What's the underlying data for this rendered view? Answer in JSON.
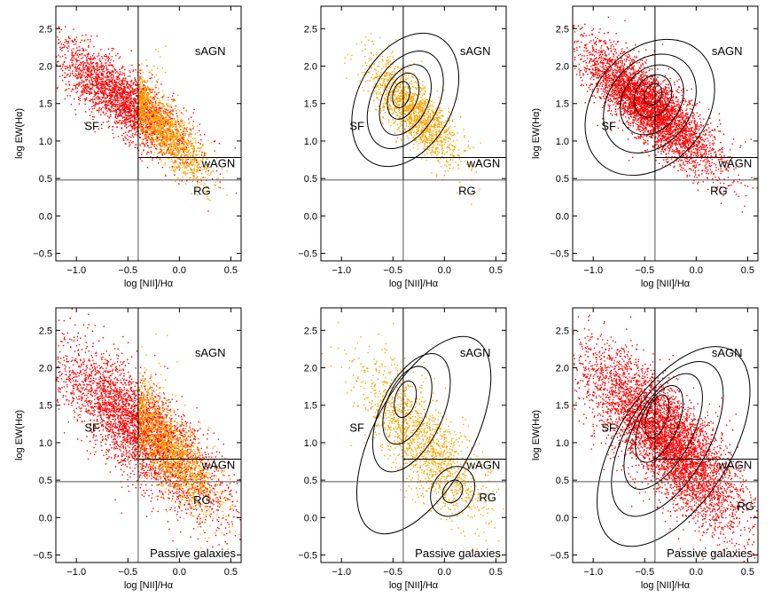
{
  "figure": {
    "description_free": true,
    "colors": {
      "star_forming": "#ff0000",
      "agn": "#ffa500",
      "axes": "#000000",
      "contour": "#000000",
      "ref_lines": "#555555"
    }
  },
  "chart_data": [
    {
      "type": "scatter",
      "panel": "top-left",
      "xlabel": "log [NII]/Hα",
      "ylabel": "log EW(Hα)",
      "xlim": [
        -1.2,
        0.6
      ],
      "ylim": [
        -0.6,
        2.8
      ],
      "xticks": [
        "−1.0",
        "−0.5",
        "0.0",
        "0.5"
      ],
      "xtick_values": [
        -1.0,
        -0.5,
        0.0,
        0.5
      ],
      "yticks": [
        "−0.5",
        "0.0",
        "0.5",
        "1.0",
        "1.5",
        "2.0",
        "2.5"
      ],
      "ytick_values": [
        -0.5,
        0.0,
        0.5,
        1.0,
        1.5,
        2.0,
        2.5
      ],
      "region_labels": [
        {
          "text": "sAGN",
          "x": 0.3,
          "y": 2.15
        },
        {
          "text": "SF",
          "x": -0.85,
          "y": 1.15
        },
        {
          "text": "wAGN",
          "x": 0.38,
          "y": 0.65
        },
        {
          "text": "RG",
          "x": 0.22,
          "y": 0.28
        }
      ],
      "ref_lines": {
        "vertical_x": -0.4,
        "h_ew": 0.78,
        "h_ew_xrange": [
          -0.4,
          0.6
        ],
        "h_low": 0.48,
        "h_low_xrange": [
          -1.2,
          0.6
        ]
      },
      "series": [
        {
          "name": "red",
          "color": "#ff0000",
          "center": [
            -0.55,
            1.55
          ],
          "spread": [
            0.33,
            0.4
          ],
          "slope": -0.95,
          "n": 2600
        },
        {
          "name": "orange",
          "color": "#ffa500",
          "center": [
            -0.15,
            1.15
          ],
          "spread": [
            0.22,
            0.35
          ],
          "slope": -1.3,
          "n": 1400,
          "xmin": -0.4
        }
      ],
      "contours": [],
      "annotation": ""
    },
    {
      "type": "scatter",
      "panel": "top-middle",
      "xlabel": "log [NII]/Hα",
      "ylabel": "",
      "xlim": [
        -1.2,
        0.6
      ],
      "ylim": [
        -0.6,
        2.8
      ],
      "xticks": [
        "−1.0",
        "−0.5",
        "0.0",
        "0.5"
      ],
      "xtick_values": [
        -1.0,
        -0.5,
        0.0,
        0.5
      ],
      "yticks": [
        "−0.5",
        "0.0",
        "0.5",
        "1.0",
        "1.5",
        "2.0",
        "2.5"
      ],
      "ytick_values": [
        -0.5,
        0.0,
        0.5,
        1.0,
        1.5,
        2.0,
        2.5
      ],
      "region_labels": [
        {
          "text": "sAGN",
          "x": 0.3,
          "y": 2.15
        },
        {
          "text": "SF",
          "x": -0.85,
          "y": 1.15
        },
        {
          "text": "wAGN",
          "x": 0.38,
          "y": 0.65
        },
        {
          "text": "RG",
          "x": 0.22,
          "y": 0.28
        }
      ],
      "ref_lines": {
        "vertical_x": -0.4,
        "h_ew": 0.78,
        "h_ew_xrange": [
          -0.4,
          0.6
        ],
        "h_low": 0.48,
        "h_low_xrange": [
          -1.2,
          0.6
        ]
      },
      "series": [
        {
          "name": "orange",
          "color": "#ffa500",
          "center": [
            -0.3,
            1.4
          ],
          "spread": [
            0.22,
            0.4
          ],
          "slope": -1.2,
          "n": 1500
        }
      ],
      "contours": [
        {
          "cx": -0.38,
          "cy": 1.55,
          "rx": 0.46,
          "ry": 0.95,
          "rot": 28
        },
        {
          "cx": -0.38,
          "cy": 1.55,
          "rx": 0.32,
          "ry": 0.7,
          "rot": 28
        },
        {
          "cx": -0.38,
          "cy": 1.55,
          "rx": 0.22,
          "ry": 0.5,
          "rot": 25
        },
        {
          "cx": -0.4,
          "cy": 1.6,
          "rx": 0.14,
          "ry": 0.32,
          "rot": 20
        },
        {
          "cx": -0.42,
          "cy": 1.62,
          "rx": 0.08,
          "ry": 0.18,
          "rot": 15
        }
      ],
      "annotation": ""
    },
    {
      "type": "scatter",
      "panel": "top-right",
      "xlabel": "log [NII]/Hα",
      "ylabel": "log EW(Hα)",
      "xlim": [
        -1.2,
        0.6
      ],
      "ylim": [
        -0.6,
        2.8
      ],
      "xticks": [
        "−1.0",
        "−0.5",
        "0.0",
        "0.5"
      ],
      "xtick_values": [
        -1.0,
        -0.5,
        0.0,
        0.5
      ],
      "yticks": [
        "−0.5",
        "0.0",
        "0.5",
        "1.0",
        "1.5",
        "2.0",
        "2.5"
      ],
      "ytick_values": [
        -0.5,
        0.0,
        0.5,
        1.0,
        1.5,
        2.0,
        2.5
      ],
      "region_labels": [
        {
          "text": "sAGN",
          "x": 0.3,
          "y": 2.15
        },
        {
          "text": "SF",
          "x": -0.85,
          "y": 1.15
        },
        {
          "text": "wAGN",
          "x": 0.38,
          "y": 0.65
        },
        {
          "text": "RG",
          "x": 0.22,
          "y": 0.28
        }
      ],
      "ref_lines": {
        "vertical_x": -0.4,
        "h_ew": 0.78,
        "h_ew_xrange": [
          -0.4,
          0.6
        ],
        "h_low": 0.48,
        "h_low_xrange": [
          -1.2,
          0.6
        ]
      },
      "series": [
        {
          "name": "red",
          "color": "#ff0000",
          "center": [
            -0.45,
            1.45
          ],
          "spread": [
            0.32,
            0.42
          ],
          "slope": -1.05,
          "n": 4200
        }
      ],
      "contours": [
        {
          "cx": -0.45,
          "cy": 1.45,
          "rx": 0.55,
          "ry": 1.0,
          "rot": 40
        },
        {
          "cx": -0.45,
          "cy": 1.5,
          "rx": 0.4,
          "ry": 0.72,
          "rot": 38
        },
        {
          "cx": -0.43,
          "cy": 1.55,
          "rx": 0.28,
          "ry": 0.5,
          "rot": 34
        },
        {
          "cx": -0.42,
          "cy": 1.6,
          "rx": 0.17,
          "ry": 0.3,
          "rot": 30
        },
        {
          "cx": -0.42,
          "cy": 1.62,
          "rx": 0.08,
          "ry": 0.15,
          "rot": 25
        }
      ],
      "annotation": ""
    },
    {
      "type": "scatter",
      "panel": "bottom-left",
      "xlabel": "log [NII]/Hα",
      "ylabel": "log EW(Hα)",
      "xlim": [
        -1.2,
        0.6
      ],
      "ylim": [
        -0.6,
        2.8
      ],
      "xticks": [
        "−1.0",
        "−0.5",
        "0.0",
        "0.5"
      ],
      "xtick_values": [
        -1.0,
        -0.5,
        0.0,
        0.5
      ],
      "yticks": [
        "−0.5",
        "0.0",
        "0.5",
        "1.0",
        "1.5",
        "2.0",
        "2.5"
      ],
      "ytick_values": [
        -0.5,
        0.0,
        0.5,
        1.0,
        1.5,
        2.0,
        2.5
      ],
      "region_labels": [
        {
          "text": "sAGN",
          "x": 0.3,
          "y": 2.15
        },
        {
          "text": "SF",
          "x": -0.85,
          "y": 1.15
        },
        {
          "text": "wAGN",
          "x": 0.38,
          "y": 0.65
        },
        {
          "text": "RG",
          "x": 0.22,
          "y": 0.18
        }
      ],
      "ref_lines": {
        "vertical_x": -0.4,
        "h_ew": 0.78,
        "h_ew_xrange": [
          -0.4,
          0.6
        ],
        "h_low": 0.48,
        "h_low_xrange": [
          -1.2,
          0.6
        ]
      },
      "series": [
        {
          "name": "red",
          "color": "#ff0000",
          "center": [
            -0.4,
            1.2
          ],
          "spread": [
            0.4,
            0.6
          ],
          "slope": -1.1,
          "n": 3600
        },
        {
          "name": "orange",
          "color": "#ffa500",
          "center": [
            -0.1,
            0.9
          ],
          "spread": [
            0.25,
            0.5
          ],
          "slope": -1.4,
          "n": 1500,
          "xmin": -0.4
        }
      ],
      "contours": [],
      "annotation": "Passive galaxies"
    },
    {
      "type": "scatter",
      "panel": "bottom-middle",
      "xlabel": "log [NII]/Hα",
      "ylabel": "",
      "xlim": [
        -1.2,
        0.6
      ],
      "ylim": [
        -0.6,
        2.8
      ],
      "xticks": [
        "−1.0",
        "−0.5",
        "0.0",
        "0.5"
      ],
      "xtick_values": [
        -1.0,
        -0.5,
        0.0,
        0.5
      ],
      "yticks": [
        "−0.5",
        "0.0",
        "0.5",
        "1.0",
        "1.5",
        "2.0",
        "2.5"
      ],
      "ytick_values": [
        -0.5,
        0.0,
        0.5,
        1.0,
        1.5,
        2.0,
        2.5
      ],
      "region_labels": [
        {
          "text": "sAGN",
          "x": 0.3,
          "y": 2.15
        },
        {
          "text": "SF",
          "x": -0.85,
          "y": 1.15
        },
        {
          "text": "wAGN",
          "x": 0.38,
          "y": 0.65
        },
        {
          "text": "RG",
          "x": 0.42,
          "y": 0.22
        }
      ],
      "ref_lines": {
        "vertical_x": -0.4,
        "h_ew": 0.78,
        "h_ew_xrange": [
          -0.4,
          0.6
        ],
        "h_low": 0.48,
        "h_low_xrange": [
          -1.2,
          0.6
        ]
      },
      "series": [
        {
          "name": "orange",
          "color": "#ffa500",
          "center": [
            -0.2,
            1.0
          ],
          "spread": [
            0.3,
            0.6
          ],
          "slope": -1.3,
          "n": 1500
        }
      ],
      "contours": [
        {
          "cx": -0.2,
          "cy": 1.1,
          "rx": 0.48,
          "ry": 1.45,
          "rot": 28
        },
        {
          "cx": -0.32,
          "cy": 1.4,
          "rx": 0.3,
          "ry": 0.85,
          "rot": 25
        },
        {
          "cx": -0.36,
          "cy": 1.5,
          "rx": 0.2,
          "ry": 0.55,
          "rot": 22
        },
        {
          "cx": -0.38,
          "cy": 1.58,
          "rx": 0.1,
          "ry": 0.25,
          "rot": 15
        },
        {
          "cx": 0.08,
          "cy": 0.35,
          "rx": 0.2,
          "ry": 0.35,
          "rot": 30
        },
        {
          "cx": 0.08,
          "cy": 0.35,
          "rx": 0.09,
          "ry": 0.16,
          "rot": 30
        }
      ],
      "annotation": "Passive galaxies"
    },
    {
      "type": "scatter",
      "panel": "bottom-right",
      "xlabel": "log [NII]/Hα",
      "ylabel": "log EW(Hα)",
      "xlim": [
        -1.2,
        0.6
      ],
      "ylim": [
        -0.6,
        2.8
      ],
      "xticks": [
        "−1.0",
        "−0.5",
        "0.0",
        "0.5"
      ],
      "xtick_values": [
        -1.0,
        -0.5,
        0.0,
        0.5
      ],
      "yticks": [
        "−0.5",
        "0.0",
        "0.5",
        "1.0",
        "1.5",
        "2.0",
        "2.5"
      ],
      "ytick_values": [
        -0.5,
        0.0,
        0.5,
        1.0,
        1.5,
        2.0,
        2.5
      ],
      "region_labels": [
        {
          "text": "sAGN",
          "x": 0.3,
          "y": 2.15
        },
        {
          "text": "SF",
          "x": -0.85,
          "y": 1.15
        },
        {
          "text": "wAGN",
          "x": 0.38,
          "y": 0.65
        },
        {
          "text": "RG",
          "x": 0.48,
          "y": 0.1
        }
      ],
      "ref_lines": {
        "vertical_x": -0.4,
        "h_ew": 0.78,
        "h_ew_xrange": [
          -0.4,
          0.6
        ],
        "h_low": 0.48,
        "h_low_xrange": [
          -1.2,
          0.6
        ]
      },
      "series": [
        {
          "name": "red",
          "color": "#ff0000",
          "center": [
            -0.3,
            1.05
          ],
          "spread": [
            0.38,
            0.65
          ],
          "slope": -1.2,
          "n": 5000
        }
      ],
      "contours": [
        {
          "cx": -0.22,
          "cy": 0.95,
          "rx": 0.55,
          "ry": 1.5,
          "rot": 32
        },
        {
          "cx": -0.28,
          "cy": 1.05,
          "rx": 0.4,
          "ry": 1.15,
          "rot": 30
        },
        {
          "cx": -0.32,
          "cy": 1.15,
          "rx": 0.28,
          "ry": 0.85,
          "rot": 28
        },
        {
          "cx": -0.36,
          "cy": 1.25,
          "rx": 0.18,
          "ry": 0.55,
          "rot": 24
        },
        {
          "cx": -0.38,
          "cy": 1.35,
          "rx": 0.1,
          "ry": 0.3,
          "rot": 18
        }
      ],
      "annotation": "Passive galaxies"
    }
  ]
}
